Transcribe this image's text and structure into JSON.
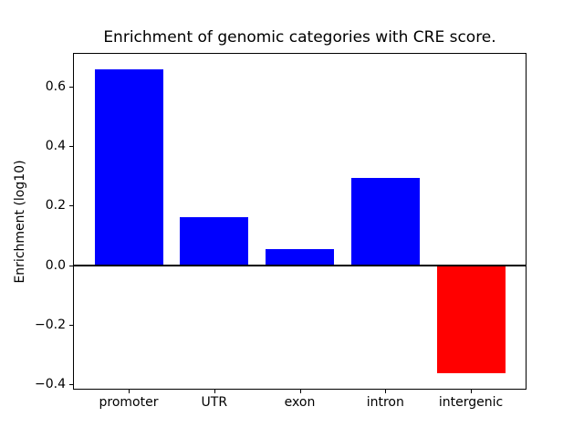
{
  "chart_data": {
    "type": "bar",
    "title": "Enrichment of genomic categories with CRE score.",
    "xlabel": "",
    "ylabel": "Enrichment (log10)",
    "categories": [
      "promoter",
      "UTR",
      "exon",
      "intron",
      "intergenic"
    ],
    "values": [
      0.66,
      0.16,
      0.055,
      0.295,
      -0.365
    ],
    "bar_colors": [
      "#0000ff",
      "#0000ff",
      "#0000ff",
      "#0000ff",
      "#ff0000"
    ],
    "positive_color": "#0000ff",
    "negative_color": "#ff0000",
    "bar_width_fraction": 0.8,
    "ylim": [
      -0.416,
      0.711
    ],
    "xlim": [
      -0.64,
      4.64
    ],
    "yticks": [
      {
        "value": 0.6,
        "label": "0.6"
      },
      {
        "value": 0.4,
        "label": "0.4"
      },
      {
        "value": 0.2,
        "label": "0.2"
      },
      {
        "value": 0.0,
        "label": "0.0"
      },
      {
        "value": -0.2,
        "label": "−0.2"
      },
      {
        "value": -0.4,
        "label": "−0.4"
      }
    ],
    "zero_line": {
      "value": 0.0,
      "color": "#000000",
      "thickness_px": 2
    },
    "grid": false,
    "legend": false,
    "background_color": "#ffffff",
    "axis_color": "#000000"
  }
}
